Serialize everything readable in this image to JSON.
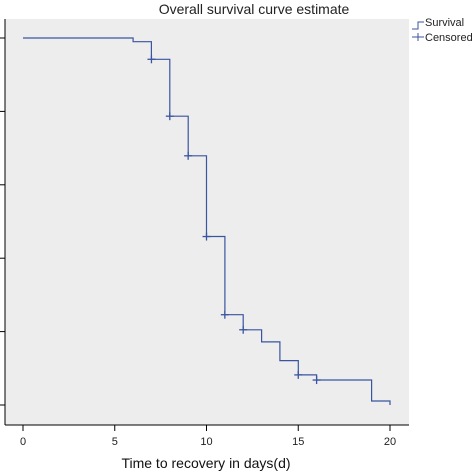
{
  "chart_data": {
    "type": "line",
    "title": "Overall survival curve estimate",
    "xlabel": "Time to recovery in days(d)",
    "ylabel": "",
    "xlim": [
      0,
      20
    ],
    "ylim": [
      0,
      1
    ],
    "x_ticks": [
      0,
      5,
      10,
      15,
      20
    ],
    "y_tick_values": [
      0.0,
      0.2,
      0.4,
      0.6,
      0.8,
      1.0
    ],
    "grid": false,
    "legend_position": "top-right",
    "line_color": "#3a55a0",
    "plot_background": "#ededed",
    "series": [
      {
        "name": "Survival",
        "step_points": [
          {
            "x": 0,
            "y": 1.0
          },
          {
            "x": 6,
            "y": 1.0
          },
          {
            "x": 6,
            "y": 0.99
          },
          {
            "x": 7,
            "y": 0.99
          },
          {
            "x": 7,
            "y": 0.942
          },
          {
            "x": 8,
            "y": 0.942
          },
          {
            "x": 8,
            "y": 0.787
          },
          {
            "x": 9,
            "y": 0.787
          },
          {
            "x": 9,
            "y": 0.679
          },
          {
            "x": 10,
            "y": 0.679
          },
          {
            "x": 10,
            "y": 0.459
          },
          {
            "x": 11,
            "y": 0.459
          },
          {
            "x": 11,
            "y": 0.246
          },
          {
            "x": 12,
            "y": 0.246
          },
          {
            "x": 12,
            "y": 0.205
          },
          {
            "x": 13,
            "y": 0.205
          },
          {
            "x": 13,
            "y": 0.172
          },
          {
            "x": 14,
            "y": 0.172
          },
          {
            "x": 14,
            "y": 0.121
          },
          {
            "x": 15,
            "y": 0.121
          },
          {
            "x": 15,
            "y": 0.082
          },
          {
            "x": 16,
            "y": 0.082
          },
          {
            "x": 16,
            "y": 0.068
          },
          {
            "x": 19,
            "y": 0.068
          },
          {
            "x": 19,
            "y": 0.011
          },
          {
            "x": 20,
            "y": 0.011
          },
          {
            "x": 20,
            "y": 0.0
          }
        ]
      },
      {
        "name": "Censored",
        "points": [
          {
            "x": 7,
            "y": 0.942
          },
          {
            "x": 8,
            "y": 0.787
          },
          {
            "x": 9,
            "y": 0.679
          },
          {
            "x": 10,
            "y": 0.459
          },
          {
            "x": 11,
            "y": 0.246
          },
          {
            "x": 12,
            "y": 0.205
          },
          {
            "x": 15,
            "y": 0.082
          },
          {
            "x": 16,
            "y": 0.068
          }
        ]
      }
    ]
  }
}
